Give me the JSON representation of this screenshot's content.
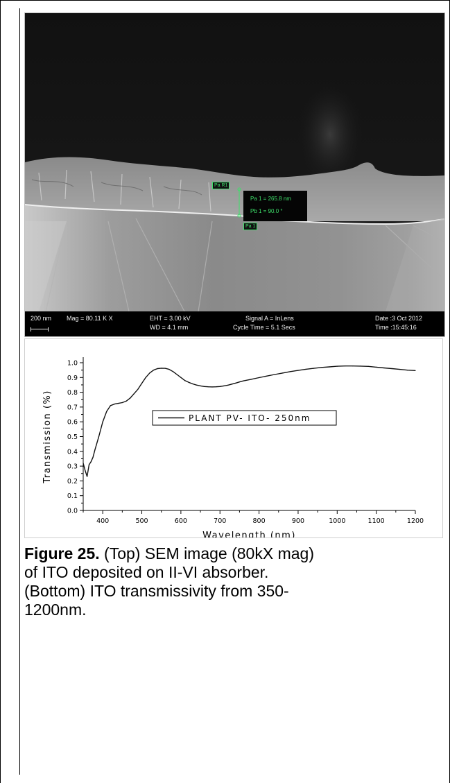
{
  "sem": {
    "scale_label": "200 nm",
    "mag": "Mag = 80.11 K X",
    "eht": "EHT = 3.00 kV",
    "wd": "WD = 4.1 mm",
    "signal": "Signal A = InLens",
    "cycle": "Cycle Time = 5.1  Secs",
    "date": "Date :3 Oct 2012",
    "time": "Time :15:45:16",
    "measure_1": "Pa 1 = 265.8 nm",
    "measure_2": "Pb 1 = 90.0 °",
    "tag_par": "Pa R1",
    "tag_pa": "Pa 1"
  },
  "chart_data": {
    "type": "line",
    "xlabel": "Wavelength (nm)",
    "ylabel": "Transmission (%)",
    "xlim": [
      350,
      1200
    ],
    "ylim": [
      0.0,
      1.0
    ],
    "xticks": [
      400,
      500,
      600,
      700,
      800,
      900,
      1000,
      1100,
      1200
    ],
    "yticks": [
      0.0,
      0.1,
      0.2,
      0.3,
      0.4,
      0.5,
      0.6,
      0.7,
      0.8,
      0.9,
      1.0
    ],
    "legend_position": "middle-right",
    "series": [
      {
        "name": "PLANT PV- ITO- 250nm",
        "color": "#111111",
        "x": [
          350,
          355,
          360,
          365,
          370,
          375,
          380,
          390,
          400,
          410,
          420,
          430,
          440,
          450,
          460,
          470,
          480,
          490,
          500,
          510,
          520,
          530,
          540,
          550,
          560,
          570,
          580,
          590,
          600,
          610,
          620,
          630,
          640,
          650,
          660,
          670,
          680,
          690,
          700,
          710,
          720,
          730,
          740,
          750,
          760,
          780,
          800,
          820,
          840,
          860,
          880,
          900,
          920,
          940,
          960,
          980,
          1000,
          1020,
          1040,
          1060,
          1080,
          1100,
          1120,
          1140,
          1160,
          1180,
          1200
        ],
        "values": [
          0.32,
          0.27,
          0.23,
          0.31,
          0.33,
          0.36,
          0.41,
          0.5,
          0.6,
          0.67,
          0.71,
          0.72,
          0.725,
          0.73,
          0.74,
          0.76,
          0.79,
          0.82,
          0.86,
          0.9,
          0.93,
          0.95,
          0.96,
          0.963,
          0.962,
          0.955,
          0.94,
          0.92,
          0.9,
          0.88,
          0.867,
          0.857,
          0.849,
          0.843,
          0.839,
          0.837,
          0.836,
          0.837,
          0.839,
          0.843,
          0.848,
          0.855,
          0.862,
          0.87,
          0.877,
          0.888,
          0.899,
          0.91,
          0.92,
          0.93,
          0.94,
          0.948,
          0.956,
          0.962,
          0.968,
          0.972,
          0.976,
          0.978,
          0.978,
          0.977,
          0.975,
          0.97,
          0.965,
          0.96,
          0.955,
          0.95,
          0.947
        ]
      }
    ]
  },
  "caption": {
    "label": "Figure 25.",
    "line1": "(Top) SEM image (80kX mag)",
    "line2": "of ITO deposited on II-VI absorber.",
    "line3": "(Bottom) ITO transmissivity from 350-",
    "line4": "1200nm."
  }
}
